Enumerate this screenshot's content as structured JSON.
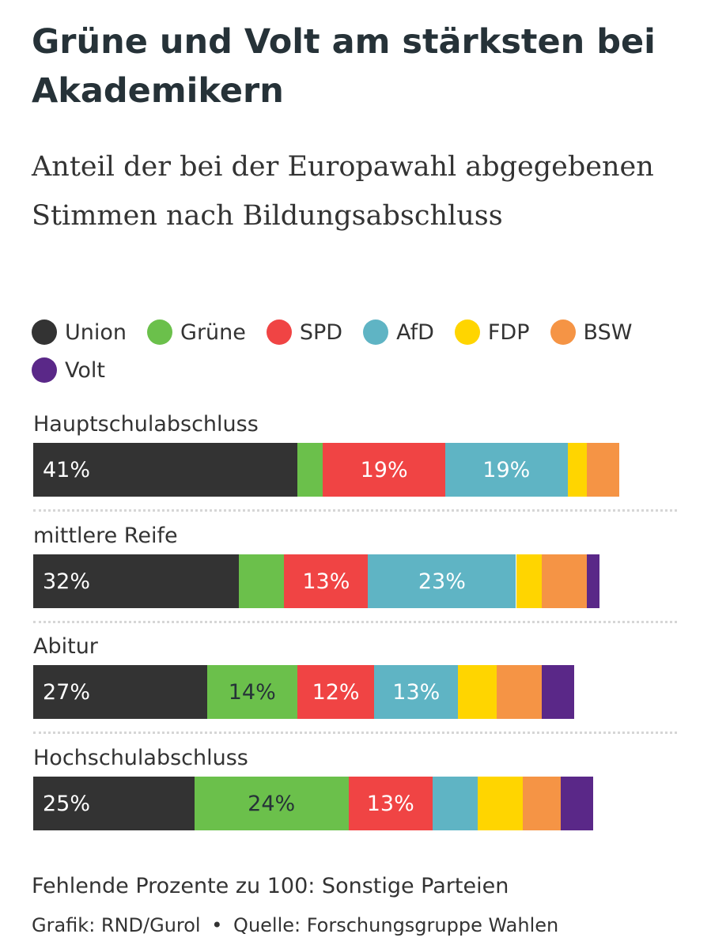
{
  "chart_data": {
    "type": "bar",
    "orientation": "horizontal-stacked",
    "title": "Grüne und Volt am stärksten bei Akademikern",
    "subtitle": "Anteil der bei der Europawahl abgegebenen Stimmen nach Bildungsabschluss",
    "legend_position": "top",
    "categories": [
      "Hauptschulabschluss",
      "mittlere Reife",
      "Abitur",
      "Hochschulabschluss"
    ],
    "series": [
      {
        "name": "Union",
        "color": "#333333",
        "text_color": "#ffffff",
        "values": [
          41,
          32,
          27,
          25
        ],
        "labels": [
          "41%",
          "32%",
          "27%",
          "25%"
        ]
      },
      {
        "name": "Grüne",
        "color": "#6bc04b",
        "text_color": "#263238",
        "values": [
          4,
          7,
          14,
          24
        ],
        "labels": [
          "",
          "",
          "14%",
          "24%"
        ]
      },
      {
        "name": "SPD",
        "color": "#f04444",
        "text_color": "#ffffff",
        "values": [
          19,
          13,
          12,
          13
        ],
        "labels": [
          "19%",
          "13%",
          "12%",
          "13%"
        ]
      },
      {
        "name": "AfD",
        "color": "#5fb4c4",
        "text_color": "#ffffff",
        "values": [
          19,
          23,
          13,
          7
        ],
        "labels": [
          "19%",
          "23%",
          "13%",
          ""
        ]
      },
      {
        "name": "FDP",
        "color": "#ffd500",
        "text_color": "#263238",
        "values": [
          3,
          4,
          6,
          7
        ],
        "labels": [
          "",
          "",
          "",
          ""
        ]
      },
      {
        "name": "BSW",
        "color": "#f59445",
        "text_color": "#263238",
        "values": [
          5,
          7,
          7,
          6
        ],
        "labels": [
          "",
          "",
          "",
          ""
        ]
      },
      {
        "name": "Volt",
        "color": "#5a2888",
        "text_color": "#ffffff",
        "values": [
          0,
          2,
          5,
          5
        ],
        "labels": [
          "",
          "",
          "",
          ""
        ]
      }
    ],
    "xlim": [
      0,
      100
    ]
  },
  "footer": {
    "note": "Fehlende Prozente zu 100: Sonstige Parteien",
    "credit": "Grafik: RND/Gurol",
    "separator": "•",
    "source": "Quelle: Forschungsgruppe Wahlen"
  }
}
